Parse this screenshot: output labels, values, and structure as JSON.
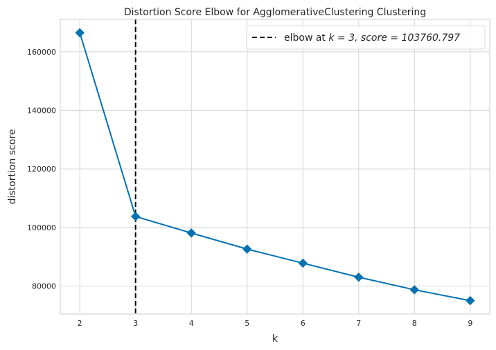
{
  "chart_data": {
    "type": "line",
    "title": "Distortion Score Elbow for AgglomerativeClustering Clustering",
    "xlabel": "k",
    "ylabel": "distortion score",
    "x": [
      2,
      3,
      4,
      5,
      6,
      7,
      8,
      9
    ],
    "series": [
      {
        "values": [
          166500,
          103761,
          98100,
          92600,
          87800,
          83000,
          78700,
          75000
        ],
        "color": "#0072b2",
        "marker": "diamond"
      }
    ],
    "elbow": {
      "k": 3,
      "score": 103760.797,
      "legend_prefix": "elbow at ",
      "legend_k_part": "k = 3, ",
      "legend_score_part": "score = 103760.797",
      "color": "#000000",
      "linestyle": "dashed"
    },
    "xticks": [
      2,
      3,
      4,
      5,
      6,
      7,
      8,
      9
    ],
    "yticks": [
      80000,
      100000,
      120000,
      140000,
      160000
    ],
    "xlim": [
      1.65,
      9.35
    ],
    "ylim": [
      70420,
      171080
    ],
    "grid": true,
    "legend_position": "top-right"
  }
}
